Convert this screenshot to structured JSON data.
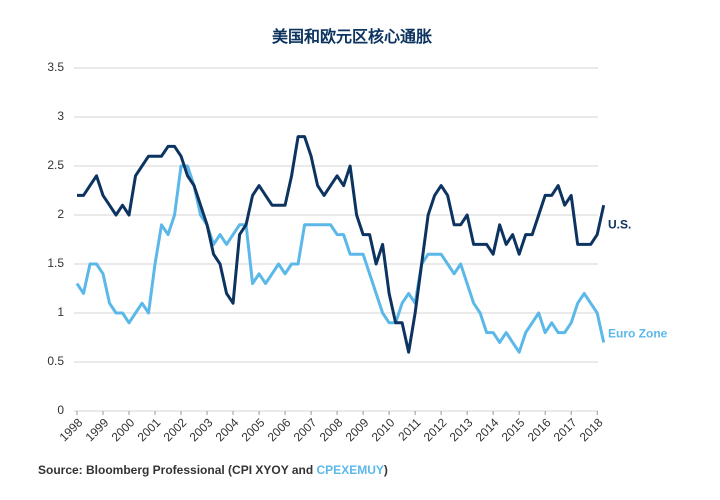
{
  "chart_data": {
    "type": "line",
    "title": "美国和欧元区核心通胀",
    "x": [
      1998,
      1998.25,
      1998.5,
      1998.75,
      1999,
      1999.25,
      1999.5,
      1999.75,
      2000,
      2000.25,
      2000.5,
      2000.75,
      2001,
      2001.25,
      2001.5,
      2001.75,
      2002,
      2002.25,
      2002.5,
      2002.75,
      2003,
      2003.25,
      2003.5,
      2003.75,
      2004,
      2004.25,
      2004.5,
      2004.75,
      2005,
      2005.25,
      2005.5,
      2005.75,
      2006,
      2006.25,
      2006.5,
      2006.75,
      2007,
      2007.25,
      2007.5,
      2007.75,
      2008,
      2008.25,
      2008.5,
      2008.75,
      2009,
      2009.25,
      2009.5,
      2009.75,
      2010,
      2010.25,
      2010.5,
      2010.75,
      2011,
      2011.25,
      2011.5,
      2011.75,
      2012,
      2012.25,
      2012.5,
      2012.75,
      2013,
      2013.25,
      2013.5,
      2013.75,
      2014,
      2014.25,
      2014.5,
      2014.75,
      2015,
      2015.25,
      2015.5,
      2015.75,
      2016,
      2016.25,
      2016.5,
      2016.75,
      2017,
      2017.25,
      2017.5,
      2017.75,
      2018,
      2018.25
    ],
    "series": [
      {
        "name": "U.S.",
        "color": "#0d3460",
        "values": [
          2.2,
          2.2,
          2.3,
          2.4,
          2.2,
          2.1,
          2.0,
          2.1,
          2.0,
          2.4,
          2.5,
          2.6,
          2.6,
          2.6,
          2.7,
          2.7,
          2.6,
          2.4,
          2.3,
          2.1,
          1.9,
          1.6,
          1.5,
          1.2,
          1.1,
          1.8,
          1.9,
          2.2,
          2.3,
          2.2,
          2.1,
          2.1,
          2.1,
          2.4,
          2.8,
          2.8,
          2.6,
          2.3,
          2.2,
          2.3,
          2.4,
          2.3,
          2.5,
          2.0,
          1.8,
          1.8,
          1.5,
          1.7,
          1.2,
          0.9,
          0.9,
          0.6,
          1.0,
          1.5,
          2.0,
          2.2,
          2.3,
          2.2,
          1.9,
          1.9,
          2.0,
          1.7,
          1.7,
          1.7,
          1.6,
          1.9,
          1.7,
          1.8,
          1.6,
          1.8,
          1.8,
          2.0,
          2.2,
          2.2,
          2.3,
          2.1,
          2.2,
          1.7,
          1.7,
          1.7,
          1.8,
          2.1
        ]
      },
      {
        "name": "Euro Zone",
        "color": "#5bb8e8",
        "values": [
          1.3,
          1.2,
          1.5,
          1.5,
          1.4,
          1.1,
          1.0,
          1.0,
          0.9,
          1.0,
          1.1,
          1.0,
          1.5,
          1.9,
          1.8,
          2.0,
          2.5,
          2.5,
          2.3,
          2.0,
          1.9,
          1.7,
          1.8,
          1.7,
          1.8,
          1.9,
          1.9,
          1.3,
          1.4,
          1.3,
          1.4,
          1.5,
          1.4,
          1.5,
          1.5,
          1.9,
          1.9,
          1.9,
          1.9,
          1.9,
          1.8,
          1.8,
          1.6,
          1.6,
          1.6,
          1.4,
          1.2,
          1.0,
          0.9,
          0.9,
          1.1,
          1.2,
          1.1,
          1.5,
          1.6,
          1.6,
          1.6,
          1.5,
          1.4,
          1.5,
          1.3,
          1.1,
          1.0,
          0.8,
          0.8,
          0.7,
          0.8,
          0.7,
          0.6,
          0.8,
          0.9,
          1.0,
          0.8,
          0.9,
          0.8,
          0.8,
          0.9,
          1.1,
          1.2,
          1.1,
          1.0,
          0.7
        ]
      }
    ],
    "xlim": [
      1998,
      2018.3
    ],
    "xticks": [
      1998,
      1999,
      2000,
      2001,
      2002,
      2003,
      2004,
      2005,
      2006,
      2007,
      2008,
      2009,
      2010,
      2011,
      2012,
      2013,
      2014,
      2015,
      2016,
      2017,
      2018
    ],
    "ylim": [
      0,
      3.5
    ],
    "yticks": [
      0,
      0.5,
      1,
      1.5,
      2,
      2.5,
      3,
      3.5
    ],
    "grid": true,
    "source": [
      "Source: Bloomberg Professional (CPI XYOY and ",
      "CPEXEMUY",
      ")"
    ]
  }
}
